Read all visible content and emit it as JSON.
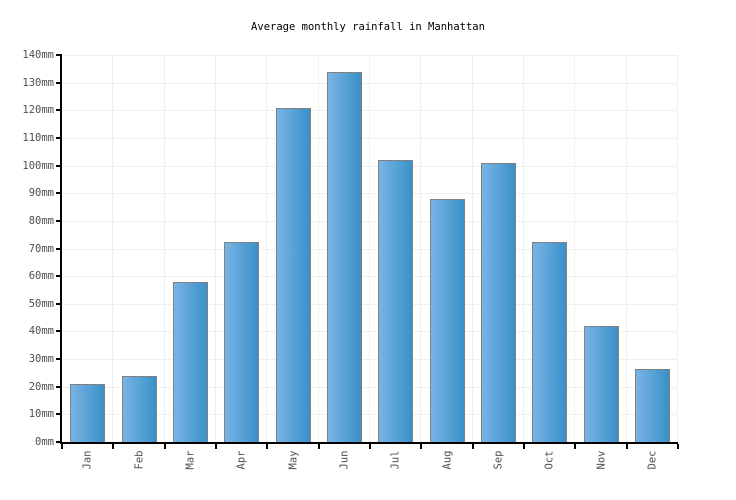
{
  "chart_data": {
    "type": "bar",
    "title": "Average monthly rainfall in Manhattan",
    "categories": [
      "Jan",
      "Feb",
      "Mar",
      "Apr",
      "May",
      "Jun",
      "Jul",
      "Aug",
      "Sep",
      "Oct",
      "Nov",
      "Dec"
    ],
    "values": [
      21,
      24,
      58,
      72.5,
      121,
      134,
      102,
      88,
      101,
      72.5,
      42,
      26.5
    ],
    "unit": "mm",
    "xlabel": "",
    "ylabel": "",
    "ylim": [
      0,
      140
    ],
    "ytick_step": 10,
    "ytick_labels": [
      "0mm",
      "10mm",
      "20mm",
      "30mm",
      "40mm",
      "50mm",
      "60mm",
      "70mm",
      "80mm",
      "90mm",
      "100mm",
      "110mm",
      "120mm",
      "130mm",
      "140mm"
    ],
    "grid": "on",
    "legend": "none",
    "colors": {
      "bar_gradient_left": "#79b4e4",
      "bar_gradient_right": "#3a90c9",
      "bar_border": "#808080",
      "grid_line": "#efefef",
      "axis_line": "#000000",
      "tick_label": "#4f4f4f",
      "title_text": "#000000",
      "background": "#ffffff"
    }
  }
}
